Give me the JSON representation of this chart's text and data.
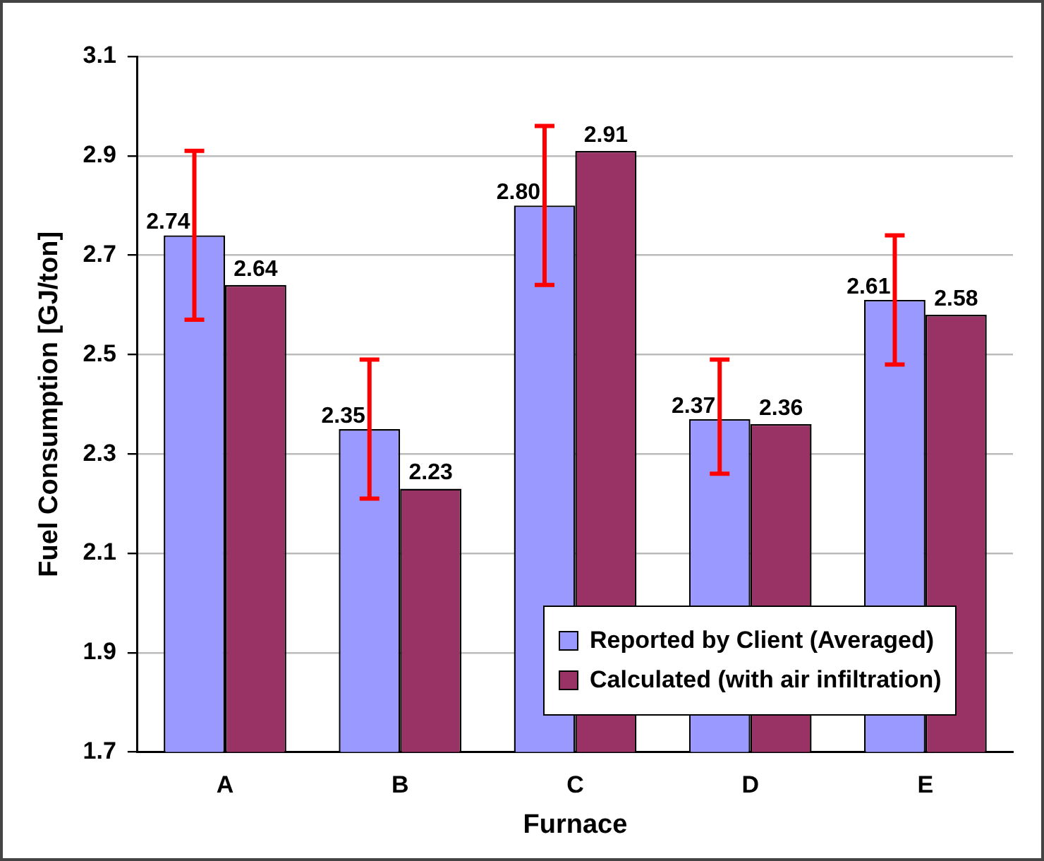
{
  "chart_data": {
    "type": "bar",
    "xlabel": "Furnace",
    "ylabel": "Fuel Consumption [GJ/ton]",
    "categories": [
      "A",
      "B",
      "C",
      "D",
      "E"
    ],
    "series": [
      {
        "name": "Reported by Client (Averaged)",
        "color": "#9999ff",
        "values": [
          2.74,
          2.35,
          2.8,
          2.37,
          2.61
        ],
        "value_labels": [
          "2.74",
          "2.35",
          "2.80",
          "2.37",
          "2.61"
        ],
        "errors": [
          [
            2.57,
            2.91
          ],
          [
            2.21,
            2.49
          ],
          [
            2.64,
            2.96
          ],
          [
            2.26,
            2.49
          ],
          [
            2.48,
            2.74
          ]
        ]
      },
      {
        "name": "Calculated (with air infiltration)",
        "color": "#993366",
        "values": [
          2.64,
          2.23,
          2.91,
          2.36,
          2.58
        ],
        "value_labels": [
          "2.64",
          "2.23",
          "2.91",
          "2.36",
          "2.58"
        ]
      }
    ],
    "ylim": [
      1.7,
      3.1
    ],
    "yticks": [
      1.7,
      1.9,
      2.1,
      2.3,
      2.5,
      2.7,
      2.9,
      3.1
    ],
    "grid": "y",
    "legend": "bottom right"
  }
}
